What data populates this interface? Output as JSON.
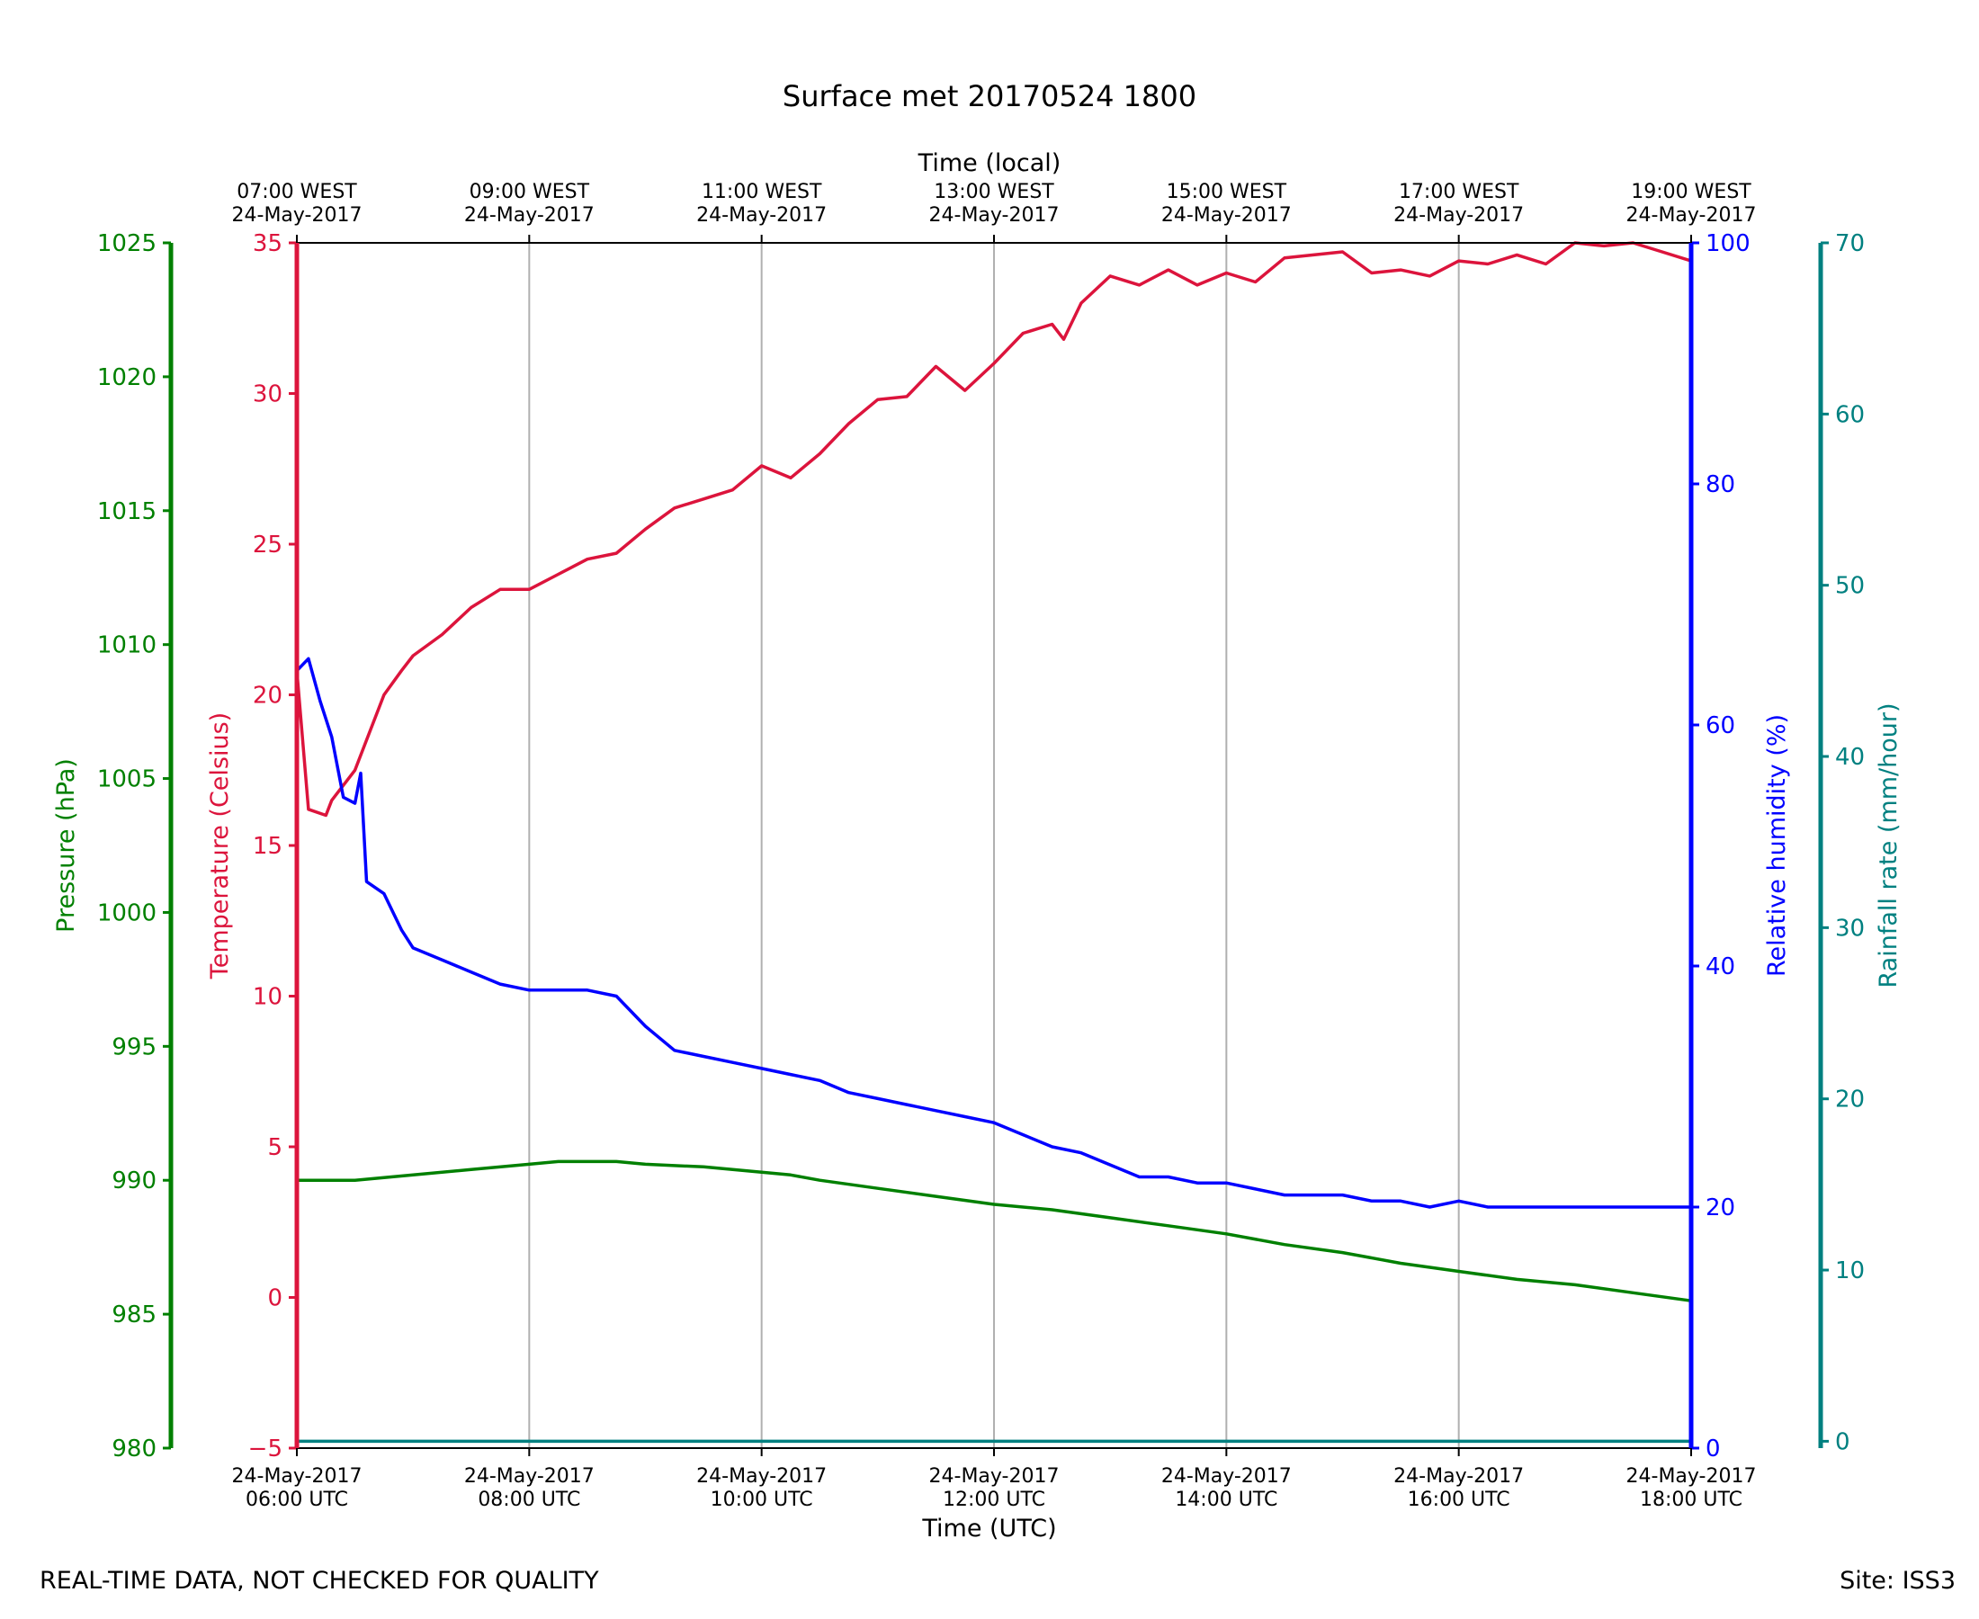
{
  "chart_data": {
    "type": "line",
    "title": "Surface met 20170524 1800",
    "top_axis_label": "Time (local)",
    "bottom_axis_label": "Time (UTC)",
    "x_ticks_utc": [
      {
        "hour": 6,
        "date": "24-May-2017",
        "time": "06:00 UTC"
      },
      {
        "hour": 8,
        "date": "24-May-2017",
        "time": "08:00 UTC"
      },
      {
        "hour": 10,
        "date": "24-May-2017",
        "time": "10:00 UTC"
      },
      {
        "hour": 12,
        "date": "24-May-2017",
        "time": "12:00 UTC"
      },
      {
        "hour": 14,
        "date": "24-May-2017",
        "time": "14:00 UTC"
      },
      {
        "hour": 16,
        "date": "24-May-2017",
        "time": "16:00 UTC"
      },
      {
        "hour": 18,
        "date": "24-May-2017",
        "time": "18:00 UTC"
      }
    ],
    "x_ticks_local": [
      {
        "hour": 6,
        "time": "07:00 WEST",
        "date": "24-May-2017"
      },
      {
        "hour": 8,
        "time": "09:00 WEST",
        "date": "24-May-2017"
      },
      {
        "hour": 10,
        "time": "11:00 WEST",
        "date": "24-May-2017"
      },
      {
        "hour": 12,
        "time": "13:00 WEST",
        "date": "24-May-2017"
      },
      {
        "hour": 14,
        "time": "15:00 WEST",
        "date": "24-May-2017"
      },
      {
        "hour": 16,
        "time": "17:00 WEST",
        "date": "24-May-2017"
      },
      {
        "hour": 18,
        "time": "19:00 WEST",
        "date": "24-May-2017"
      }
    ],
    "xlim": [
      6,
      18
    ],
    "axes": {
      "pressure": {
        "label": "Pressure (hPa)",
        "color": "#008000",
        "lim": [
          980,
          1025
        ],
        "ticks": [
          "980",
          "985",
          "990",
          "995",
          "1000",
          "1005",
          "1010",
          "1015",
          "1020",
          "1025"
        ]
      },
      "temperature": {
        "label": "Temperature (Celsius)",
        "color": "#dc143c",
        "lim": [
          -5,
          35
        ],
        "ticks": [
          "−5",
          "0",
          "5",
          "10",
          "15",
          "20",
          "25",
          "30",
          "35"
        ]
      },
      "humidity": {
        "label": "Relative humidity (%)",
        "color": "#0000ff",
        "lim": [
          0,
          100
        ],
        "ticks": [
          "0",
          "20",
          "40",
          "60",
          "80",
          "100"
        ]
      },
      "rainfall": {
        "label": "Rainfall rate (mm/hour)",
        "color": "#008080",
        "lim": [
          -0.4,
          70
        ],
        "ticks": [
          "0",
          "10",
          "20",
          "30",
          "40",
          "50",
          "60",
          "70"
        ]
      }
    },
    "series": [
      {
        "name": "Temperature",
        "axis": "temperature",
        "color": "#dc143c",
        "x": [
          6.0,
          6.1,
          6.25,
          6.3,
          6.5,
          6.6,
          6.75,
          6.9,
          7.0,
          7.25,
          7.5,
          7.75,
          8.0,
          8.25,
          8.5,
          8.75,
          9.0,
          9.25,
          9.5,
          9.75,
          10.0,
          10.25,
          10.5,
          10.75,
          11.0,
          11.25,
          11.5,
          11.75,
          12.0,
          12.25,
          12.5,
          12.6,
          12.75,
          13.0,
          13.25,
          13.5,
          13.75,
          14.0,
          14.25,
          14.5,
          14.75,
          15.0,
          15.25,
          15.5,
          15.75,
          16.0,
          16.25,
          16.5,
          16.75,
          17.0,
          17.25,
          17.5,
          17.75,
          18.0
        ],
        "y": [
          20.8,
          16.2,
          16.0,
          16.5,
          17.5,
          18.5,
          20.0,
          20.8,
          21.3,
          22.0,
          22.9,
          23.5,
          23.5,
          24.0,
          24.5,
          24.7,
          25.5,
          26.2,
          26.5,
          26.8,
          27.6,
          27.2,
          28.0,
          29.0,
          29.8,
          29.9,
          30.9,
          30.1,
          31.0,
          32.0,
          32.3,
          31.8,
          33.0,
          33.9,
          33.6,
          34.1,
          33.6,
          34.0,
          33.7,
          34.5,
          34.6,
          34.7,
          34.0,
          34.1,
          33.9,
          34.4,
          34.3,
          34.6,
          34.3,
          35.0,
          34.9,
          35.0,
          34.7,
          34.4
        ]
      },
      {
        "name": "Relative humidity",
        "axis": "humidity",
        "color": "#0000ff",
        "x": [
          6.0,
          6.1,
          6.2,
          6.25,
          6.3,
          6.4,
          6.5,
          6.55,
          6.6,
          6.75,
          6.9,
          7.0,
          7.25,
          7.5,
          7.75,
          8.0,
          8.25,
          8.5,
          8.75,
          9.0,
          9.25,
          9.5,
          9.75,
          10.0,
          10.25,
          10.5,
          10.75,
          11.0,
          11.25,
          11.5,
          11.75,
          12.0,
          12.25,
          12.5,
          12.75,
          13.0,
          13.25,
          13.5,
          13.75,
          14.0,
          14.25,
          14.5,
          14.75,
          15.0,
          15.25,
          15.5,
          15.75,
          16.0,
          16.25,
          16.5,
          16.75,
          17.0,
          17.25,
          17.5,
          17.75,
          18.0
        ],
        "y": [
          64.5,
          65.5,
          62.0,
          60.5,
          59.0,
          54.0,
          53.5,
          56.0,
          47.0,
          46.0,
          43.0,
          41.5,
          40.5,
          39.5,
          38.5,
          38.0,
          38.0,
          38.0,
          37.5,
          35.0,
          33.0,
          32.5,
          32.0,
          31.5,
          31.0,
          30.5,
          29.5,
          29.0,
          28.5,
          28.0,
          27.5,
          27.0,
          26.0,
          25.0,
          24.5,
          23.5,
          22.5,
          22.5,
          22.0,
          22.0,
          21.5,
          21.0,
          21.0,
          21.0,
          20.5,
          20.5,
          20.0,
          20.5,
          20.0,
          20.0,
          20.0,
          20.0,
          20.0,
          20.0,
          20.0,
          20.0
        ]
      },
      {
        "name": "Pressure",
        "axis": "pressure",
        "color": "#008000",
        "x": [
          6.0,
          6.5,
          7.0,
          7.5,
          8.0,
          8.25,
          8.5,
          8.75,
          9.0,
          9.5,
          10.0,
          10.25,
          10.5,
          11.0,
          11.5,
          12.0,
          12.5,
          13.0,
          13.5,
          14.0,
          14.5,
          15.0,
          15.5,
          16.0,
          16.5,
          17.0,
          17.5,
          18.0
        ],
        "y": [
          990.0,
          990.0,
          990.2,
          990.4,
          990.6,
          990.7,
          990.7,
          990.7,
          990.6,
          990.5,
          990.3,
          990.2,
          990.0,
          989.7,
          989.4,
          989.1,
          988.9,
          988.6,
          988.3,
          988.0,
          987.6,
          987.3,
          986.9,
          986.6,
          986.3,
          986.1,
          985.8,
          985.5
        ]
      },
      {
        "name": "Rainfall rate",
        "axis": "rainfall",
        "color": "#008080",
        "x": [
          6.0,
          18.0
        ],
        "y": [
          0.0,
          0.0
        ]
      }
    ]
  },
  "footer": {
    "note": "REAL-TIME DATA, NOT CHECKED FOR QUALITY",
    "site": "Site: ISS3"
  }
}
